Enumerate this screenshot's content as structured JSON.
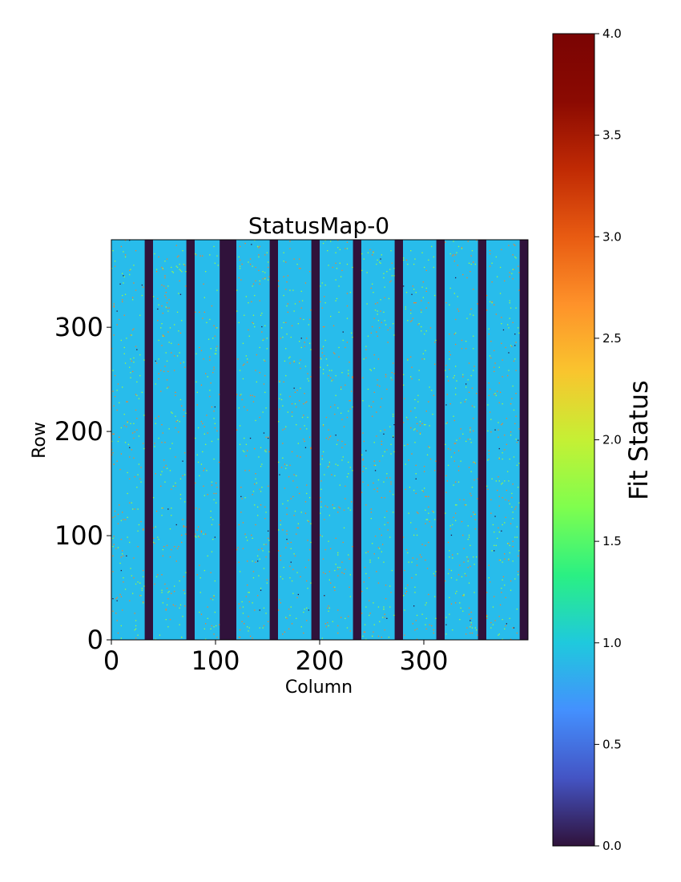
{
  "chart_data": {
    "type": "heatmap",
    "title": "StatusMap-0",
    "xlabel": "Column",
    "ylabel": "Row",
    "xlim": [
      0,
      400
    ],
    "ylim": [
      0,
      384
    ],
    "x_ticks": [
      0,
      100,
      200,
      300
    ],
    "y_ticks": [
      0,
      100,
      200,
      300
    ],
    "colormap": "turbo",
    "colorbar": {
      "label": "Fit Status",
      "range": [
        0.0,
        4.0
      ],
      "ticks": [
        "0.0",
        "0.5",
        "1.0",
        "1.5",
        "2.0",
        "2.5",
        "3.0",
        "3.5",
        "4.0"
      ]
    },
    "dominant_value": 1,
    "scattered_values": [
      2,
      3
    ],
    "masked_value": 0,
    "masked_column_ranges": [
      [
        32,
        40
      ],
      [
        72,
        80
      ],
      [
        104,
        120
      ],
      [
        152,
        160
      ],
      [
        192,
        200
      ],
      [
        232,
        240
      ],
      [
        272,
        280
      ],
      [
        312,
        320
      ],
      [
        352,
        360
      ],
      [
        392,
        400
      ]
    ],
    "colors": {
      "status_0": "#30123b",
      "status_1": "#28bceb",
      "status_2": "#a4fc3c",
      "status_3": "#fb8022",
      "status_4": "#7a0403"
    }
  }
}
